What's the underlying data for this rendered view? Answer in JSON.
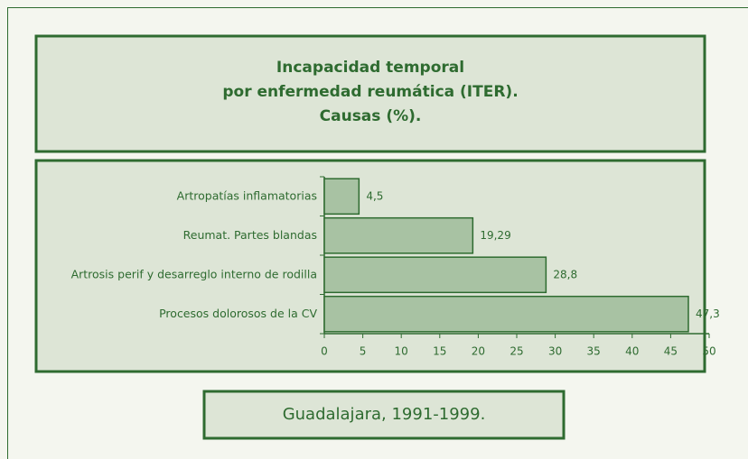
{
  "chart_data": {
    "type": "bar",
    "orientation": "horizontal",
    "title": [
      "Incapacidad temporal",
      "por enfermedad reumática (ITER).",
      "Causas (%)."
    ],
    "categories": [
      "Artropatías inflamatorias",
      "Reumat. Partes blandas",
      "Artrosis perif y desarreglo interno de rodilla",
      "Procesos dolorosos de la CV"
    ],
    "values": [
      4.5,
      19.29,
      28.8,
      47.3
    ],
    "value_labels": [
      "4,5",
      "19,29",
      "28,8",
      "47,3"
    ],
    "color": "#a8c2a3",
    "xlim": [
      0,
      50
    ],
    "xticks": [
      0,
      5,
      10,
      15,
      20,
      25,
      30,
      35,
      40,
      45,
      50
    ],
    "footer": "Guadalajara, 1991-1999."
  }
}
